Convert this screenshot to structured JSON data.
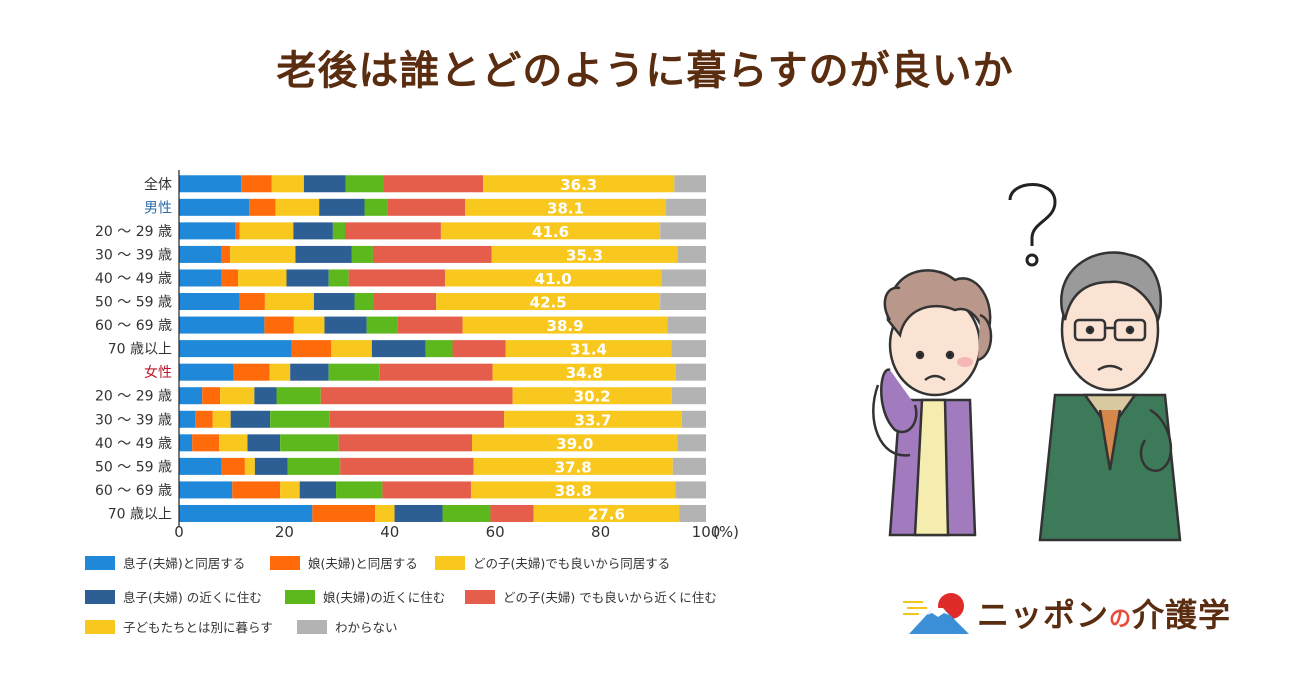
{
  "title": "老後は誰とどのように暮らすのが良いか",
  "brand": {
    "name_part1": "ニッポン",
    "name_no": "の",
    "name_part2": "介護学"
  },
  "colors": {
    "c1": "#1f88d8",
    "c2": "#ff6a0a",
    "c3": "#f9c81f",
    "c4": "#2e5f94",
    "c5": "#5db81e",
    "c6": "#e55e4b",
    "c7": "#f9c81f",
    "c8": "#b3b3b3",
    "male_label": "#2e6ba6",
    "female_label": "#c0162d"
  },
  "chart_data": {
    "type": "bar",
    "orientation": "horizontal",
    "stacked": true,
    "unit_label": "(%)",
    "xlim": [
      0,
      100
    ],
    "x_ticks": [
      "0",
      "20",
      "40",
      "60",
      "80",
      "100"
    ],
    "categories": [
      "全体",
      "男性",
      "20 ～ 29 歳",
      "30 ～ 39 歳",
      "40 ～ 49 歳",
      "50 ～ 59 歳",
      "60 ～ 69 歳",
      "70 歳以上",
      "女性",
      "20 ～ 29 歳",
      "30 ～ 39 歳",
      "40 ～ 49 歳",
      "50 ～ 59 歳",
      "60 ～ 69 歳",
      "70 歳以上"
    ],
    "category_styles": [
      "normal",
      "male",
      "normal",
      "normal",
      "normal",
      "normal",
      "normal",
      "normal",
      "female",
      "normal",
      "normal",
      "normal",
      "normal",
      "normal",
      "normal"
    ],
    "series": [
      {
        "name": "息子(夫婦)と同居する",
        "values": [
          11.8,
          13.3,
          10.7,
          8.1,
          8.1,
          11.5,
          16.2,
          21.4,
          10.4,
          4.4,
          3.1,
          2.5,
          8.1,
          10.1,
          25.3
        ]
      },
      {
        "name": "娘(夫婦)と同居する",
        "values": [
          5.8,
          5.0,
          0.8,
          1.6,
          3.1,
          4.8,
          5.6,
          7.5,
          6.8,
          3.4,
          3.3,
          5.1,
          4.4,
          9.1,
          11.9
        ]
      },
      {
        "name": "どの子(夫婦)でも良いから同居する",
        "values": [
          6.1,
          8.3,
          10.2,
          12.4,
          9.2,
          9.3,
          5.8,
          7.7,
          3.9,
          6.5,
          3.4,
          5.4,
          1.9,
          3.7,
          3.7
        ]
      },
      {
        "name": "息子(夫婦) の近くに住む",
        "values": [
          7.9,
          8.6,
          7.5,
          10.7,
          8.0,
          7.7,
          8.0,
          10.2,
          7.3,
          4.2,
          7.5,
          6.2,
          6.2,
          6.9,
          9.1
        ]
      },
      {
        "name": "娘(夫婦)の近くに住む",
        "values": [
          7.2,
          4.3,
          2.3,
          4.0,
          3.8,
          3.6,
          5.8,
          5.1,
          9.7,
          8.4,
          11.3,
          11.1,
          10.0,
          8.8,
          9.1
        ]
      },
      {
        "name": "どの子(夫婦) でも良いから近くに住む",
        "values": [
          18.9,
          14.8,
          18.2,
          22.5,
          18.3,
          11.9,
          12.4,
          10.1,
          21.4,
          36.4,
          33.1,
          25.3,
          25.3,
          16.8,
          8.2
        ]
      },
      {
        "name": "子どもたちとは別に暮らす",
        "values": [
          36.3,
          38.1,
          41.6,
          35.3,
          41.0,
          42.5,
          38.9,
          31.4,
          34.8,
          30.2,
          33.7,
          39.0,
          37.8,
          38.8,
          27.6
        ]
      },
      {
        "name": "わからない",
        "values": [
          6.0,
          7.6,
          8.7,
          5.4,
          8.5,
          8.7,
          7.3,
          6.6,
          5.7,
          6.5,
          4.6,
          5.4,
          6.3,
          5.8,
          5.1
        ]
      }
    ],
    "labeled_series_index": 6,
    "grid": false,
    "legend_position": "bottom"
  }
}
